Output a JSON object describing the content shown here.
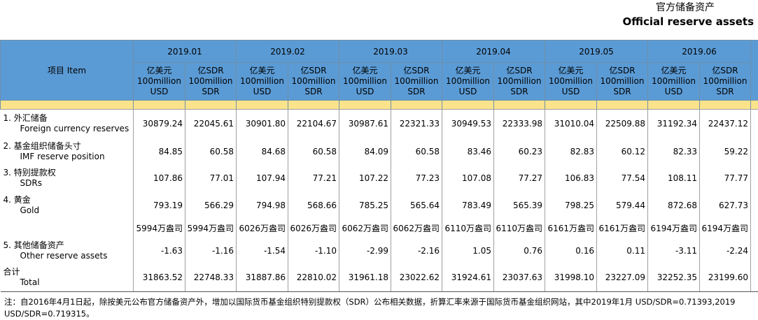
{
  "header": {
    "title_cn": "官方储备资产",
    "title_en": "Official reserve assets"
  },
  "table": {
    "item_header": "项目 Item",
    "periods": [
      "2019.01",
      "2019.02",
      "2019.03",
      "2019.04",
      "2019.05",
      "2019.06"
    ],
    "units": [
      [
        "亿美元",
        "100million",
        "USD"
      ],
      [
        "亿SDR",
        "100million",
        "SDR"
      ]
    ],
    "rows": [
      {
        "label_cn": "1. 外汇储备",
        "label_en": "Foreign currency reserves",
        "values": [
          "30879.24",
          "22045.61",
          "30901.80",
          "22104.67",
          "30987.61",
          "22321.33",
          "30949.53",
          "22333.98",
          "31010.04",
          "22509.88",
          "31192.34",
          "22437.12"
        ]
      },
      {
        "label_cn": "2. 基金组织储备头寸",
        "label_en": "IMF reserve position",
        "values": [
          "84.85",
          "60.58",
          "84.68",
          "60.58",
          "84.09",
          "60.58",
          "83.46",
          "60.23",
          "82.83",
          "60.12",
          "82.33",
          "59.22"
        ]
      },
      {
        "label_cn": "3. 特别提款权",
        "label_en": "SDRs",
        "values": [
          "107.86",
          "77.01",
          "107.94",
          "77.21",
          "107.22",
          "77.23",
          "107.08",
          "77.27",
          "106.83",
          "77.54",
          "108.11",
          "77.77"
        ]
      },
      {
        "label_cn": "4. 黄金",
        "label_en": "Gold",
        "values": [
          "793.19",
          "566.29",
          "794.98",
          "568.66",
          "785.25",
          "565.64",
          "783.49",
          "565.39",
          "798.25",
          "579.44",
          "872.68",
          "627.73"
        ]
      },
      {
        "values": [
          "5994万盎司",
          "5994万盎司",
          "6026万盎司",
          "6026万盎司",
          "6062万盎司",
          "6062万盎司",
          "6110万盎司",
          "6110万盎司",
          "6161万盎司",
          "6161万盎司",
          "6194万盎司",
          "6194万盎司"
        ]
      },
      {
        "label_cn": "5. 其他储备资产",
        "label_en": "Other reserve assets",
        "values": [
          "-1.63",
          "-1.16",
          "-1.54",
          "-1.10",
          "-2.99",
          "-2.16",
          "1.05",
          "0.76",
          "0.16",
          "0.11",
          "-3.11",
          "-2.24"
        ]
      },
      {
        "label_cn": "合计",
        "label_en": "Total",
        "values": [
          "31863.52",
          "22748.33",
          "31887.86",
          "22810.02",
          "31961.18",
          "23022.62",
          "31924.61",
          "23037.63",
          "31998.10",
          "23227.09",
          "32252.35",
          "23199.60"
        ]
      }
    ]
  },
  "note": [
    "注：自2016年4月1日起，除按美元公布官方储备资产外，增加以国际货币基金组织特别提款权（SDR）公布相关数据，折算汇率来源于国际货币基金组织网站，其中2019年1月 USD/SDR=0.71393,2019",
    "USD/SDR=0.719315。"
  ]
}
